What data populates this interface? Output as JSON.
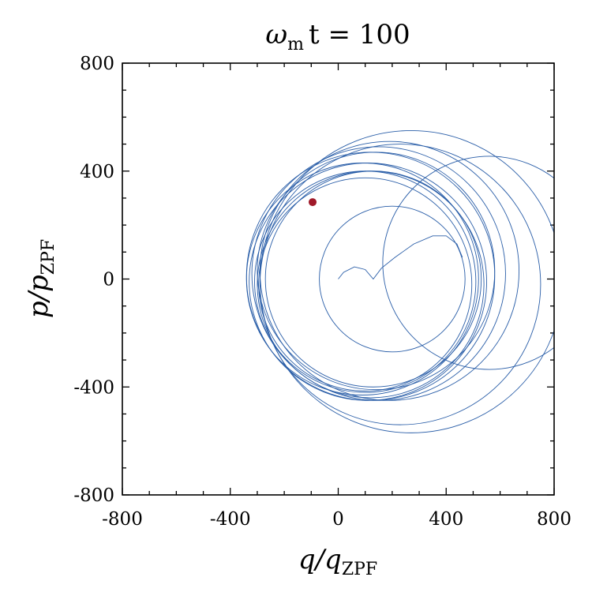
{
  "chart_data": {
    "type": "line",
    "title": {
      "main": "ω",
      "sub": "m",
      "rest": "t = 100"
    },
    "xlabel": {
      "main": "q/q",
      "sub": "ZPF"
    },
    "ylabel": {
      "main": "p/p",
      "sub": "ZPF"
    },
    "xlim": [
      -800,
      800
    ],
    "ylim": [
      -800,
      800
    ],
    "xticks": [
      -800,
      -400,
      0,
      400,
      800
    ],
    "yticks": [
      -800,
      -400,
      0,
      400,
      800
    ],
    "xtick_labels": [
      "-800",
      "-400",
      "0",
      "400",
      "800"
    ],
    "ytick_labels": [
      "-800",
      "-400",
      "0",
      "400",
      "800"
    ],
    "grid": false,
    "line_color": "#2a5ea8",
    "marker_color": "#a01a2a",
    "initial_path": [
      [
        0,
        0
      ],
      [
        20,
        25
      ],
      [
        60,
        45
      ],
      [
        100,
        35
      ],
      [
        130,
        0
      ],
      [
        160,
        40
      ],
      [
        210,
        80
      ],
      [
        280,
        130
      ],
      [
        350,
        160
      ],
      [
        400,
        160
      ],
      [
        440,
        130
      ],
      [
        460,
        80
      ]
    ],
    "loops": [
      {
        "cx": 200,
        "cy": 0,
        "r": 270
      },
      {
        "cx": 560,
        "cy": 60,
        "r": 395
      },
      {
        "cx": 270,
        "cy": -10,
        "r": 560
      },
      {
        "cx": 230,
        "cy": -20,
        "r": 520
      },
      {
        "cx": 190,
        "cy": 30,
        "r": 480
      },
      {
        "cx": 150,
        "cy": 20,
        "r": 470
      },
      {
        "cx": 120,
        "cy": 10,
        "r": 460
      },
      {
        "cx": 110,
        "cy": -10,
        "r": 440
      },
      {
        "cx": 90,
        "cy": 0,
        "r": 430
      },
      {
        "cx": 140,
        "cy": 30,
        "r": 440
      },
      {
        "cx": 120,
        "cy": -20,
        "r": 420
      },
      {
        "cx": 100,
        "cy": -10,
        "r": 410
      },
      {
        "cx": 130,
        "cy": 0,
        "r": 400
      },
      {
        "cx": 100,
        "cy": -20,
        "r": 395
      }
    ],
    "current_point": [
      -95,
      285
    ]
  }
}
